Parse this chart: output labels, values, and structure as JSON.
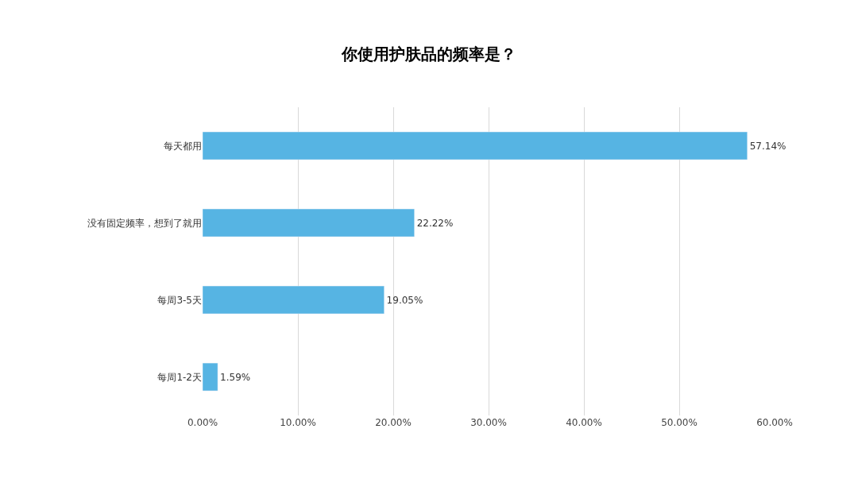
{
  "chart_data": {
    "type": "bar",
    "orientation": "horizontal",
    "title": "你使用护肤品的频率是？",
    "categories": [
      "每天都用",
      "没有固定频率，想到了就用",
      "每周3-5天",
      "每周1-2天"
    ],
    "values": [
      57.14,
      22.22,
      19.05,
      1.59
    ],
    "value_labels": [
      "57.14%",
      "22.22%",
      "19.05%",
      "1.59%"
    ],
    "color": "#56b4e3",
    "xlim": [
      0,
      60
    ],
    "xticks": [
      {
        "value": 0,
        "label": "0.00%"
      },
      {
        "value": 10,
        "label": "10.00%"
      },
      {
        "value": 20,
        "label": "20.00%"
      },
      {
        "value": 30,
        "label": "30.00%"
      },
      {
        "value": 40,
        "label": "40.00%"
      },
      {
        "value": 50,
        "label": "50.00%"
      },
      {
        "value": 60,
        "label": "60.00%"
      }
    ],
    "grid": "x"
  }
}
